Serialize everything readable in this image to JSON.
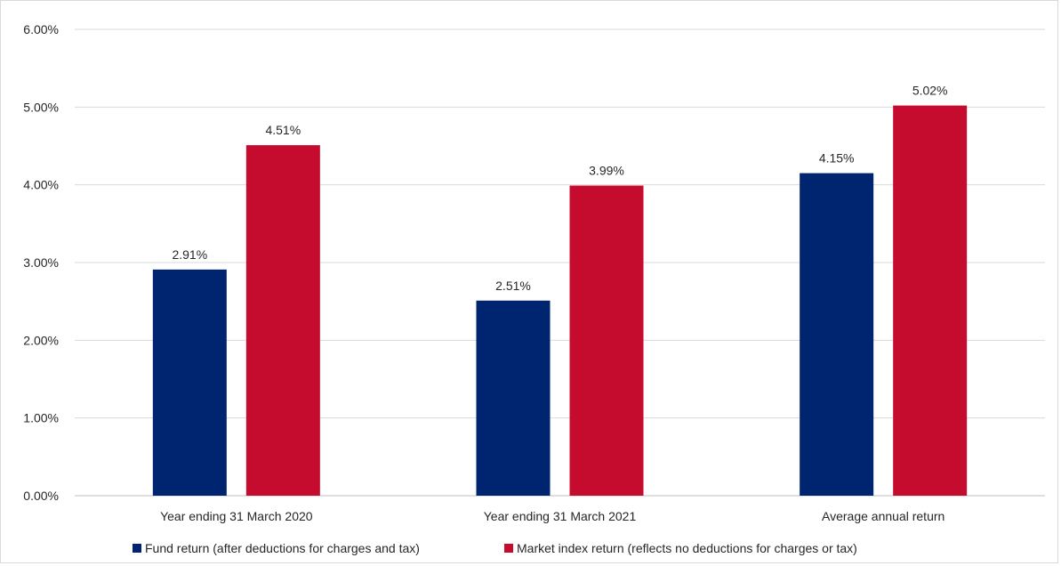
{
  "chart_data": {
    "type": "bar",
    "categories": [
      "Year ending 31 March 2020",
      "Year ending 31 March 2021",
      "Average annual return"
    ],
    "series": [
      {
        "name": "Fund return (after deductions for charges and tax)",
        "values": [
          2.91,
          2.51,
          4.15
        ],
        "labels": [
          "2.91%",
          "2.51%",
          "4.15%"
        ],
        "color": "#002570"
      },
      {
        "name": "Market index return (reflects no deductions for charges or tax)",
        "values": [
          4.51,
          3.99,
          5.02
        ],
        "labels": [
          "4.51%",
          "3.99%",
          "5.02%"
        ],
        "color": "#c50c2f"
      }
    ],
    "ylim": [
      0,
      6
    ],
    "yticks": [
      0,
      1,
      2,
      3,
      4,
      5,
      6
    ],
    "ytick_labels": [
      "0.00%",
      "1.00%",
      "2.00%",
      "3.00%",
      "4.00%",
      "5.00%",
      "6.00%"
    ],
    "grid": true,
    "legend_position": "bottom"
  }
}
